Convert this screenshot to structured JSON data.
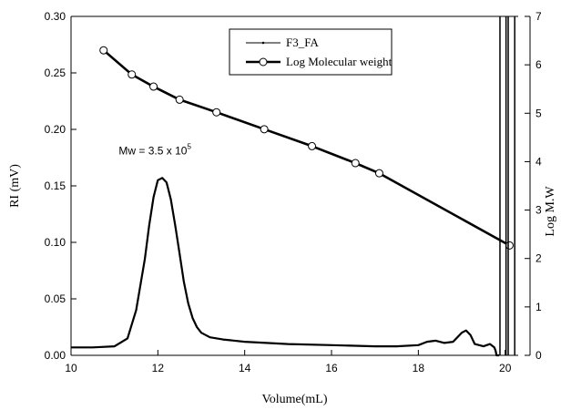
{
  "chart_data": {
    "type": "line",
    "title": "",
    "xlabel": "Volume(mL)",
    "ylabel": "RI (mV)",
    "y2label": "Log M.W",
    "xlim": [
      10,
      20.3
    ],
    "ylim": [
      0,
      0.3
    ],
    "y2lim": [
      0,
      7
    ],
    "x_ticks": [
      10,
      12,
      14,
      16,
      18,
      20
    ],
    "y_ticks": [
      0.0,
      0.05,
      0.1,
      0.15,
      0.2,
      0.25,
      0.3
    ],
    "y_tick_labels": [
      "0.00",
      "0.05",
      "0.10",
      "0.15",
      "0.20",
      "0.25",
      "0.30"
    ],
    "y2_ticks": [
      0,
      1,
      2,
      3,
      4,
      5,
      6,
      7
    ],
    "grid": false,
    "legend_position": "top-center",
    "annotation": {
      "text": "Mw = 3.5 x 10",
      "superscript": "5",
      "x": 11.1,
      "y": 0.178
    },
    "series": [
      {
        "name": "F3_FA",
        "axis": "left",
        "style": "thin-line",
        "x": [
          10.0,
          10.5,
          11.0,
          11.3,
          11.5,
          11.7,
          11.8,
          11.9,
          12.0,
          12.1,
          12.2,
          12.3,
          12.4,
          12.5,
          12.6,
          12.7,
          12.8,
          12.9,
          13.0,
          13.2,
          13.5,
          14.0,
          15.0,
          16.0,
          17.0,
          17.5,
          18.0,
          18.2,
          18.4,
          18.6,
          18.8,
          19.0,
          19.1,
          19.2,
          19.3,
          19.5,
          19.65,
          19.75,
          19.78,
          19.8,
          19.82,
          19.84,
          19.86
        ],
        "y": [
          0.007,
          0.007,
          0.008,
          0.015,
          0.04,
          0.085,
          0.115,
          0.14,
          0.155,
          0.157,
          0.153,
          0.138,
          0.115,
          0.09,
          0.065,
          0.046,
          0.033,
          0.025,
          0.02,
          0.016,
          0.014,
          0.012,
          0.01,
          0.009,
          0.008,
          0.008,
          0.009,
          0.012,
          0.013,
          0.011,
          0.012,
          0.02,
          0.022,
          0.018,
          0.01,
          0.008,
          0.01,
          0.007,
          0.004,
          0.0,
          0.0,
          0.0,
          0.0
        ]
      },
      {
        "name": "Log Molecular weight",
        "axis": "right",
        "style": "thick-line-open-circles",
        "x": [
          10.75,
          11.4,
          11.9,
          12.5,
          13.35,
          14.45,
          15.55,
          16.55,
          17.1,
          20.1
        ],
        "y": [
          6.3,
          5.8,
          5.55,
          5.28,
          5.02,
          4.67,
          4.32,
          3.97,
          3.76,
          2.27
        ]
      }
    ],
    "right_edge_lines_x": [
      19.88,
      20.02,
      20.07,
      20.22
    ]
  }
}
